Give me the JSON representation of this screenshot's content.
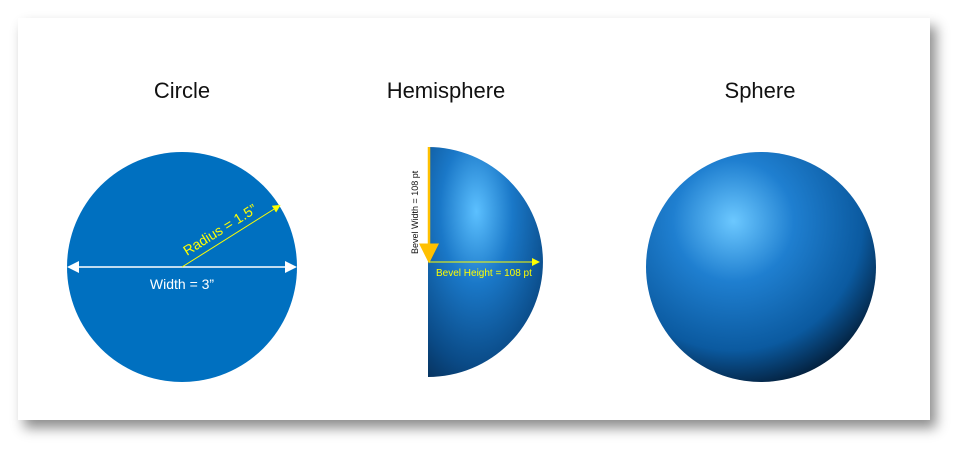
{
  "panels": [
    {
      "title": "Circle",
      "width_label": "Width = 3”",
      "radius_label": "Radius = 1.5”"
    },
    {
      "title": "Hemisphere",
      "bevel_width_label": "Bevel Width = 108 pt",
      "bevel_height_label": "Bevel Height = 108 pt"
    },
    {
      "title": "Sphere"
    }
  ],
  "colors": {
    "shape_blue": "#0070c0",
    "annotation_yellow": "#ffff00",
    "arrow_orange": "#ffc000",
    "width_line": "#ffffff"
  }
}
